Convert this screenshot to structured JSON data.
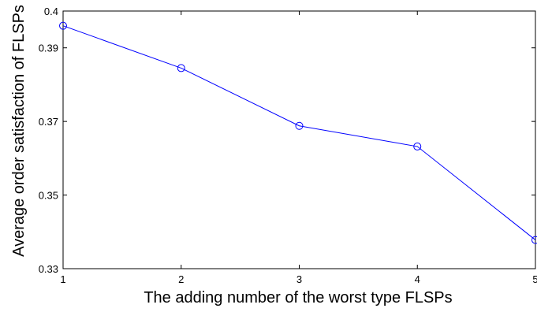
{
  "chart_data": {
    "type": "line",
    "xlabel": "The adding number of the worst type FLSPs",
    "ylabel": "Average order satisfaction of FLSPs",
    "xlim": [
      1,
      5
    ],
    "ylim": [
      0.33,
      0.4
    ],
    "xticks": [
      1,
      2,
      3,
      4,
      5
    ],
    "xtick_labels": [
      "1",
      "2",
      "3",
      "4",
      "5"
    ],
    "yticks": [
      0.33,
      0.35,
      0.37,
      0.39,
      0.4
    ],
    "ytick_labels": [
      "0.33",
      "0.35",
      "0.37",
      "0.39",
      "0.4"
    ],
    "grid": false,
    "series": [
      {
        "color": "#0000ff",
        "marker": "circle",
        "x": [
          1,
          2,
          3,
          4,
          5
        ],
        "y": [
          0.396,
          0.3845,
          0.3688,
          0.3632,
          0.3378
        ]
      }
    ]
  }
}
